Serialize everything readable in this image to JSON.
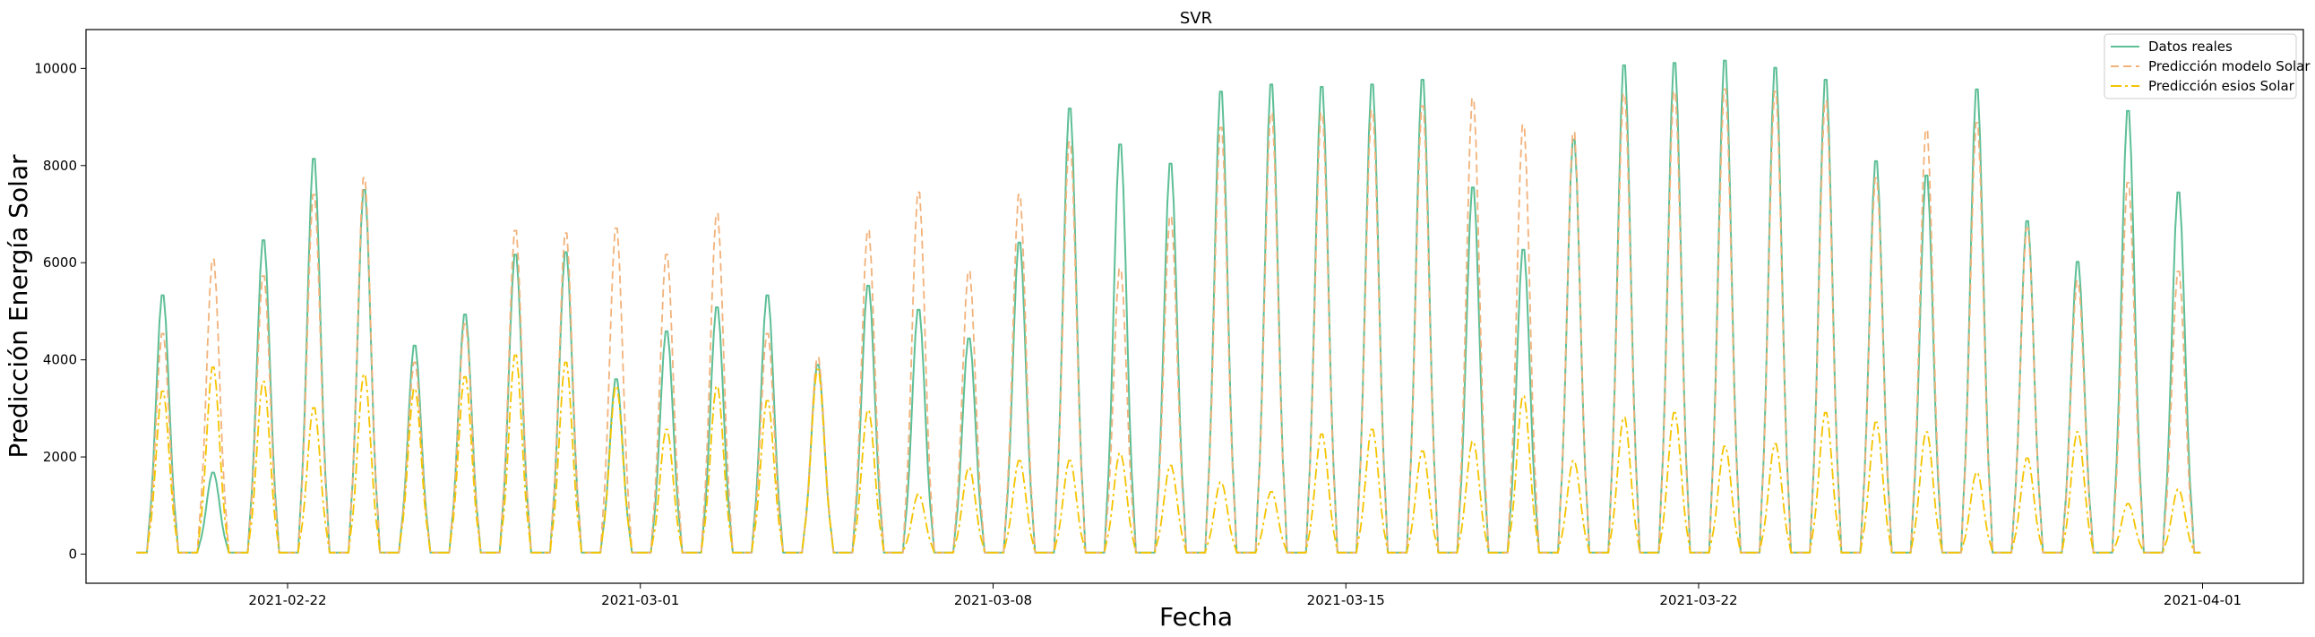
{
  "chart_data": {
    "type": "line",
    "title": "SVR",
    "xlabel": "Fecha",
    "ylabel": "Predicción Energía Solar",
    "x_start": "2021-02-19",
    "x_end": "2021-04-02",
    "xlim": [
      "2021-02-18",
      "2021-04-03"
    ],
    "ylim": [
      -600,
      10800
    ],
    "x_ticks": [
      "2021-02-22",
      "2021-03-01",
      "2021-03-08",
      "2021-03-15",
      "2021-03-22",
      "2021-04-01"
    ],
    "y_ticks": [
      0,
      2000,
      4000,
      6000,
      8000,
      10000
    ],
    "legend_position": "top-right",
    "grid": false,
    "series": [
      {
        "name": "Datos reales",
        "color": "#5dbf96",
        "style": "solid",
        "daily_peaks": [
          5400,
          1700,
          6550,
          8250,
          7600,
          4350,
          5000,
          6250,
          6300,
          3650,
          4650,
          5150,
          5400,
          3950,
          5600,
          5100,
          4500,
          6500,
          9300,
          8550,
          8150,
          9650,
          9800,
          9750,
          9800,
          9900,
          7650,
          6350,
          8650,
          10200,
          10250,
          10300,
          10150,
          9900,
          8200,
          7900,
          9700,
          6950,
          6100,
          9250,
          7550
        ]
      },
      {
        "name": "Predicción modelo Solar",
        "color": "#f2b27a",
        "style": "dashed",
        "daily_peaks": [
          4600,
          6150,
          5800,
          7500,
          7850,
          4000,
          4800,
          6750,
          6700,
          6800,
          6250,
          7100,
          4600,
          4100,
          6750,
          7550,
          5900,
          7500,
          8600,
          5950,
          7050,
          8900,
          9200,
          9200,
          9250,
          9350,
          9500,
          8950,
          8800,
          9600,
          9650,
          9700,
          9650,
          9450,
          7850,
          8850,
          9000,
          6800,
          5700,
          7750,
          5900
        ]
      },
      {
        "name": "Predicción esios Solar",
        "color": "#f5c400",
        "style": "dashdot",
        "daily_peaks": [
          3400,
          3900,
          3600,
          3050,
          3750,
          3450,
          3700,
          4150,
          4000,
          3500,
          2600,
          3500,
          3200,
          3850,
          3000,
          1250,
          1800,
          1950,
          1950,
          2100,
          1850,
          1500,
          1300,
          2500,
          2600,
          2150,
          2350,
          3300,
          1950,
          2850,
          2950,
          2250,
          2300,
          2950,
          2750,
          2550,
          1700,
          2000,
          2550,
          1050,
          1350
        ]
      }
    ]
  }
}
